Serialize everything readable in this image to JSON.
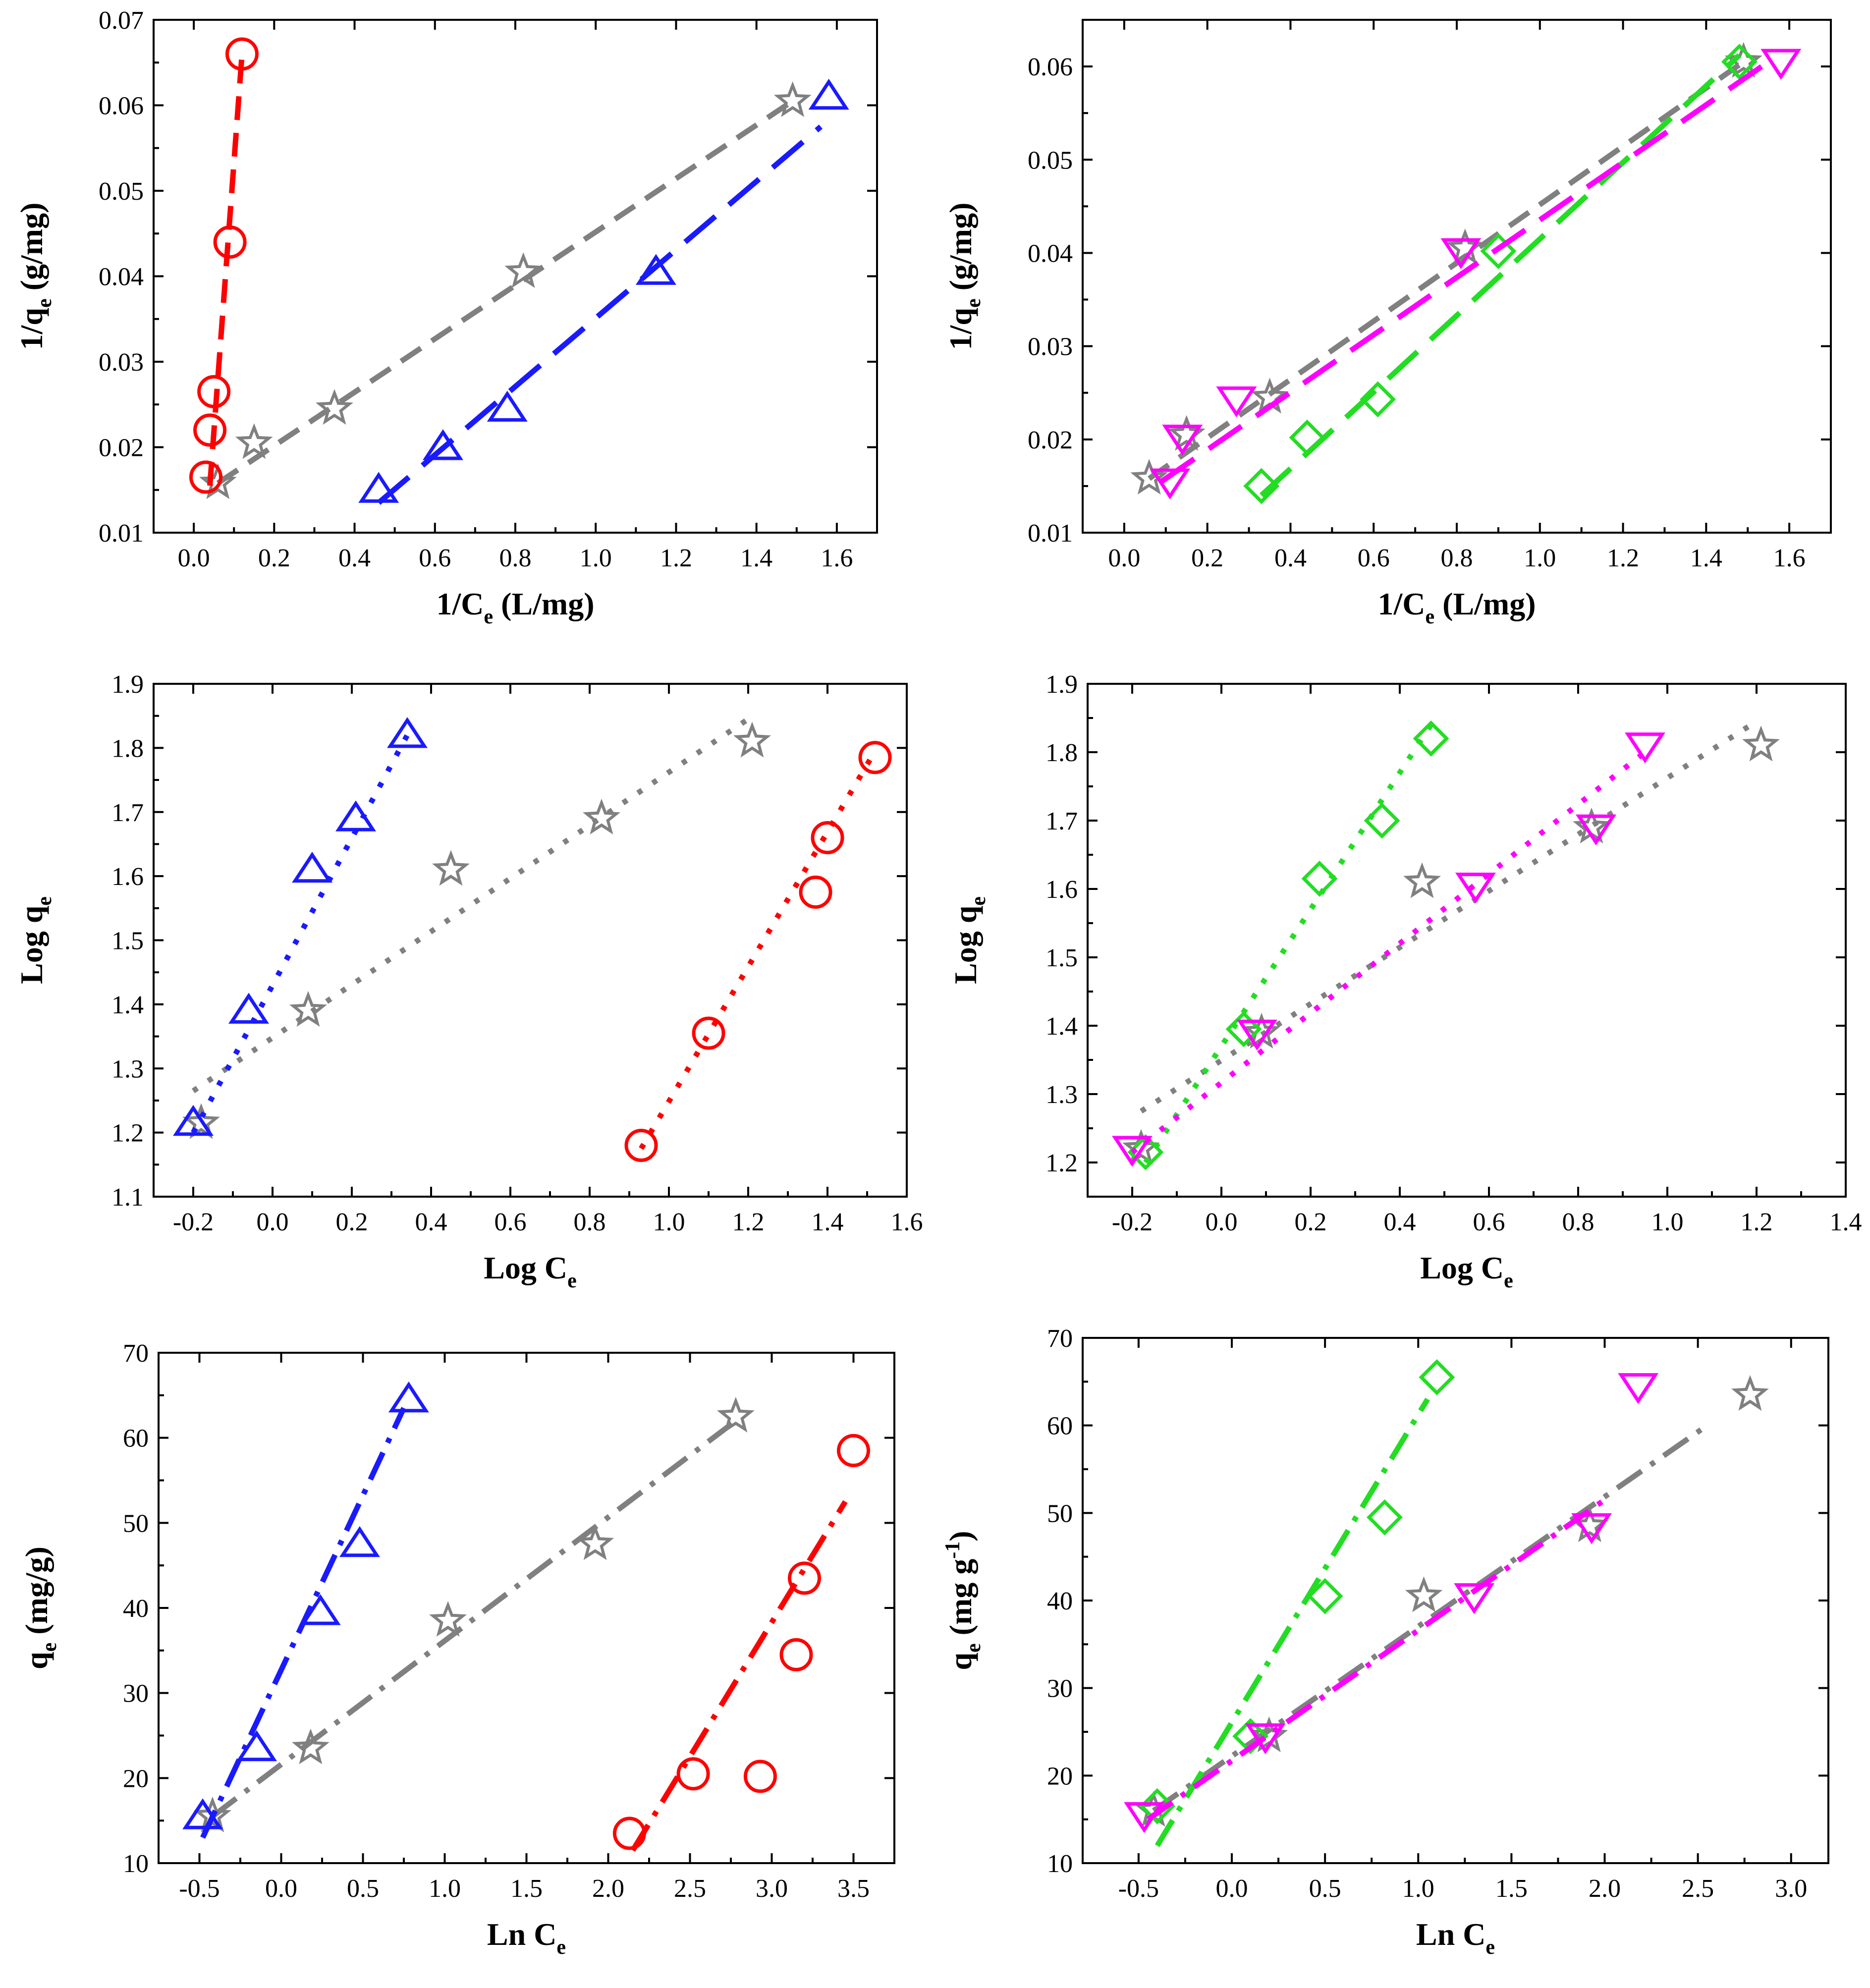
{
  "colors": {
    "gray": "#808080",
    "blue": "#1a1aff",
    "red": "#ff0000",
    "green": "#22dd22",
    "magenta": "#ff00ff"
  },
  "chart_data": [
    {
      "id": "p1",
      "type": "scatter",
      "xlabel": {
        "main": "1/C",
        "sub": "e",
        "post": " (L/mg)"
      },
      "ylabel": {
        "main": "1/q",
        "sub": "e",
        "post": " (g/mg)"
      },
      "xlim": [
        -0.1,
        1.7
      ],
      "ylim": [
        0.01,
        0.07
      ],
      "xticks": [
        "0.0",
        "0.2",
        "0.4",
        "0.6",
        "0.8",
        "1.0",
        "1.2",
        "1.4",
        "1.6"
      ],
      "yticks": [
        "0.01",
        "0.02",
        "0.03",
        "0.04",
        "0.05",
        "0.06",
        "0.07"
      ],
      "series": [
        {
          "name": "gray",
          "color": "gray",
          "marker": "star",
          "dash": "dash",
          "x": [
            0.06,
            0.15,
            0.35,
            0.82,
            1.49
          ],
          "y": [
            0.0158,
            0.0205,
            0.0245,
            0.0405,
            0.0605
          ],
          "fit": [
            [
              0.06,
              0.0158
            ],
            [
              1.49,
              0.0605
            ]
          ]
        },
        {
          "name": "blue",
          "color": "blue",
          "marker": "triangle-up",
          "dash": "longdash",
          "x": [
            0.46,
            0.62,
            0.78,
            1.15,
            1.58
          ],
          "y": [
            0.015,
            0.02,
            0.0245,
            0.0405,
            0.061
          ],
          "fit": [
            [
              0.46,
              0.0135
            ],
            [
              1.56,
              0.0575
            ]
          ]
        },
        {
          "name": "red",
          "color": "red",
          "marker": "circle",
          "dash": "dash",
          "x": [
            0.03,
            0.04,
            0.05,
            0.09,
            0.12
          ],
          "y": [
            0.0165,
            0.022,
            0.0265,
            0.044,
            0.066
          ],
          "fit": [
            [
              0.04,
              0.0155
            ],
            [
              0.12,
              0.066
            ]
          ]
        }
      ]
    },
    {
      "id": "p2",
      "type": "scatter",
      "xlabel": {
        "main": "1/C",
        "sub": "e",
        "post": " (L/mg)"
      },
      "ylabel": {
        "main": "1/q",
        "sub": "e",
        "post": " (g/mg)"
      },
      "xlim": [
        -0.1,
        1.7
      ],
      "ylim": [
        0.01,
        0.065
      ],
      "xticks": [
        "0.0",
        "0.2",
        "0.4",
        "0.6",
        "0.8",
        "1.0",
        "1.2",
        "1.4",
        "1.6"
      ],
      "yticks": [
        "0.01",
        "0.02",
        "0.03",
        "0.04",
        "0.05",
        "0.06"
      ],
      "series": [
        {
          "name": "gray",
          "color": "gray",
          "marker": "star",
          "dash": "dash",
          "x": [
            0.06,
            0.15,
            0.35,
            0.82,
            1.49
          ],
          "y": [
            0.0158,
            0.0205,
            0.0245,
            0.0405,
            0.0605
          ],
          "fit": [
            [
              0.06,
              0.0158
            ],
            [
              1.49,
              0.0605
            ]
          ]
        },
        {
          "name": "green",
          "color": "green",
          "marker": "diamond",
          "dash": "longdash",
          "x": [
            0.33,
            0.44,
            0.61,
            0.9,
            1.48
          ],
          "y": [
            0.015,
            0.0202,
            0.0243,
            0.0402,
            0.0605
          ],
          "fit": [
            [
              0.33,
              0.014
            ],
            [
              1.48,
              0.0612
            ]
          ]
        },
        {
          "name": "magenta",
          "color": "magenta",
          "marker": "triangle-down",
          "dash": "longdash",
          "x": [
            0.11,
            0.14,
            0.27,
            0.81,
            1.58
          ],
          "y": [
            0.0155,
            0.0202,
            0.0243,
            0.0402,
            0.0605
          ],
          "fit": [
            [
              0.09,
              0.0155
            ],
            [
              1.55,
              0.0605
            ]
          ]
        }
      ]
    },
    {
      "id": "p3",
      "type": "scatter",
      "xlabel": {
        "main": "Log C",
        "sub": "e",
        "post": ""
      },
      "ylabel": {
        "main": "Log q",
        "sub": "e",
        "post": ""
      },
      "xlim": [
        -0.3,
        1.6
      ],
      "ylim": [
        1.1,
        1.9
      ],
      "xticks": [
        "-0.2",
        "0.0",
        "0.2",
        "0.4",
        "0.6",
        "0.8",
        "1.0",
        "1.2",
        "1.4",
        "1.6"
      ],
      "yticks": [
        "1.1",
        "1.2",
        "1.3",
        "1.4",
        "1.5",
        "1.6",
        "1.7",
        "1.8",
        "1.9"
      ],
      "series": [
        {
          "name": "gray",
          "color": "gray",
          "marker": "star",
          "dash": "dot",
          "x": [
            -0.18,
            0.09,
            0.45,
            0.83,
            1.21
          ],
          "y": [
            1.215,
            1.39,
            1.61,
            1.69,
            1.81
          ],
          "fit": [
            [
              -0.2,
              1.265
            ],
            [
              1.2,
              1.845
            ]
          ]
        },
        {
          "name": "blue",
          "color": "blue",
          "marker": "triangle-up",
          "dash": "dot",
          "x": [
            -0.2,
            -0.06,
            0.1,
            0.21,
            0.34
          ],
          "y": [
            1.215,
            1.39,
            1.61,
            1.69,
            1.82
          ],
          "fit": [
            [
              -0.2,
              1.2
            ],
            [
              0.34,
              1.82
            ]
          ]
        },
        {
          "name": "red",
          "color": "red",
          "marker": "circle",
          "dash": "dot",
          "x": [
            0.93,
            1.1,
            1.37,
            1.4,
            1.52
          ],
          "y": [
            1.18,
            1.355,
            1.575,
            1.66,
            1.785
          ],
          "fit": [
            [
              0.93,
              1.175
            ],
            [
              1.52,
              1.795
            ]
          ]
        }
      ]
    },
    {
      "id": "p4",
      "type": "scatter",
      "xlabel": {
        "main": "Log C",
        "sub": "e",
        "post": ""
      },
      "ylabel": {
        "main": "Log q",
        "sub": "e",
        "post": ""
      },
      "xlim": [
        -0.3,
        1.4
      ],
      "ylim": [
        1.15,
        1.9
      ],
      "xticks": [
        "-0.2",
        "0.0",
        "0.2",
        "0.4",
        "0.6",
        "0.8",
        "1.0",
        "1.2",
        "1.4"
      ],
      "yticks": [
        "1.2",
        "1.3",
        "1.4",
        "1.5",
        "1.6",
        "1.7",
        "1.8",
        "1.9"
      ],
      "series": [
        {
          "name": "gray",
          "color": "gray",
          "marker": "star",
          "dash": "dot",
          "x": [
            -0.18,
            0.09,
            0.45,
            0.83,
            1.21
          ],
          "y": [
            1.22,
            1.39,
            1.61,
            1.69,
            1.81
          ],
          "fit": [
            [
              -0.18,
              1.275
            ],
            [
              1.2,
              1.845
            ]
          ]
        },
        {
          "name": "green",
          "color": "green",
          "marker": "diamond",
          "dash": "dot",
          "x": [
            -0.17,
            0.05,
            0.22,
            0.36,
            0.47
          ],
          "y": [
            1.215,
            1.395,
            1.615,
            1.7,
            1.82
          ],
          "fit": [
            [
              -0.17,
              1.2
            ],
            [
              0.47,
              1.84
            ]
          ]
        },
        {
          "name": "magenta",
          "color": "magenta",
          "marker": "triangle-down",
          "dash": "dot",
          "x": [
            -0.2,
            0.08,
            0.57,
            0.84,
            0.95
          ],
          "y": [
            1.22,
            1.39,
            1.605,
            1.69,
            1.81
          ],
          "fit": [
            [
              -0.2,
              1.215
            ],
            [
              0.95,
              1.8
            ]
          ]
        }
      ]
    },
    {
      "id": "p5",
      "type": "scatter",
      "xlabel": {
        "main": "Ln C",
        "sub": "e",
        "post": ""
      },
      "ylabel": {
        "main": "q",
        "sub": "e",
        "post": " (mg/g)"
      },
      "xlim": [
        -0.75,
        3.75
      ],
      "ylim": [
        10,
        70
      ],
      "xticks": [
        "-0.5",
        "0.0",
        "0.5",
        "1.0",
        "1.5",
        "2.0",
        "2.5",
        "3.0",
        "3.5"
      ],
      "yticks": [
        "10",
        "20",
        "30",
        "40",
        "50",
        "60",
        "70"
      ],
      "series": [
        {
          "name": "gray",
          "color": "gray",
          "marker": "star",
          "dash": "dashdot",
          "x": [
            -0.42,
            0.18,
            1.02,
            1.92,
            2.78
          ],
          "y": [
            15.5,
            23.5,
            38.5,
            47.5,
            62.5
          ],
          "fit": [
            [
              -0.42,
              15.5
            ],
            [
              2.78,
              62.0
            ]
          ]
        },
        {
          "name": "blue",
          "color": "blue",
          "marker": "triangle-up",
          "dash": "dashdot",
          "x": [
            -0.48,
            -0.15,
            0.24,
            0.48,
            0.78
          ],
          "y": [
            15.5,
            23.5,
            39.5,
            47.5,
            64.5
          ],
          "fit": [
            [
              -0.48,
              13.0
            ],
            [
              0.75,
              63.5
            ]
          ]
        },
        {
          "name": "red",
          "color": "red",
          "marker": "circle",
          "dash": "dashdot",
          "x": [
            2.13,
            2.52,
            3.15,
            3.2,
            3.5,
            2.93
          ],
          "y": [
            13.5,
            20.5,
            34.5,
            43.5,
            58.5,
            20.2
          ],
          "fit": [
            [
              2.15,
              11.5
            ],
            [
              3.45,
              52.5
            ]
          ]
        }
      ]
    },
    {
      "id": "p6",
      "type": "scatter",
      "xlabel": {
        "main": "Ln C",
        "sub": "e",
        "post": ""
      },
      "ylabel": {
        "main": "q",
        "sub": "e",
        "post": " (mg g",
        "sup": "-1",
        "post2": ")"
      },
      "xlim": [
        -0.8,
        3.2
      ],
      "ylim": [
        10,
        70
      ],
      "xticks": [
        "-0.5",
        "0.0",
        "0.5",
        "1.0",
        "1.5",
        "2.0",
        "2.5",
        "3.0"
      ],
      "yticks": [
        "10",
        "20",
        "30",
        "40",
        "50",
        "60",
        "70"
      ],
      "series": [
        {
          "name": "gray",
          "color": "gray",
          "marker": "star",
          "dash": "dashdot",
          "x": [
            -0.42,
            0.2,
            1.03,
            1.92,
            2.78
          ],
          "y": [
            16.0,
            24.5,
            40.5,
            48.5,
            63.5
          ],
          "fit": [
            [
              -0.42,
              16.0
            ],
            [
              2.55,
              60.0
            ]
          ]
        },
        {
          "name": "green",
          "color": "green",
          "marker": "diamond",
          "dash": "dashdot",
          "x": [
            0.1,
            0.5,
            0.82,
            1.1,
            -0.4
          ],
          "y": [
            24.5,
            40.5,
            49.5,
            65.5,
            16.5
          ],
          "fit": [
            [
              -0.4,
              12.0
            ],
            [
              1.05,
              63.0
            ]
          ]
        },
        {
          "name": "magenta",
          "color": "magenta",
          "marker": "triangle-down",
          "dash": "dashdot",
          "x": [
            -0.47,
            0.18,
            1.3,
            1.93,
            2.18
          ],
          "y": [
            15.5,
            24.5,
            40.5,
            48.5,
            64.5
          ],
          "fit": [
            [
              -0.45,
              15.0
            ],
            [
              2.0,
              51.5
            ]
          ]
        }
      ]
    }
  ]
}
